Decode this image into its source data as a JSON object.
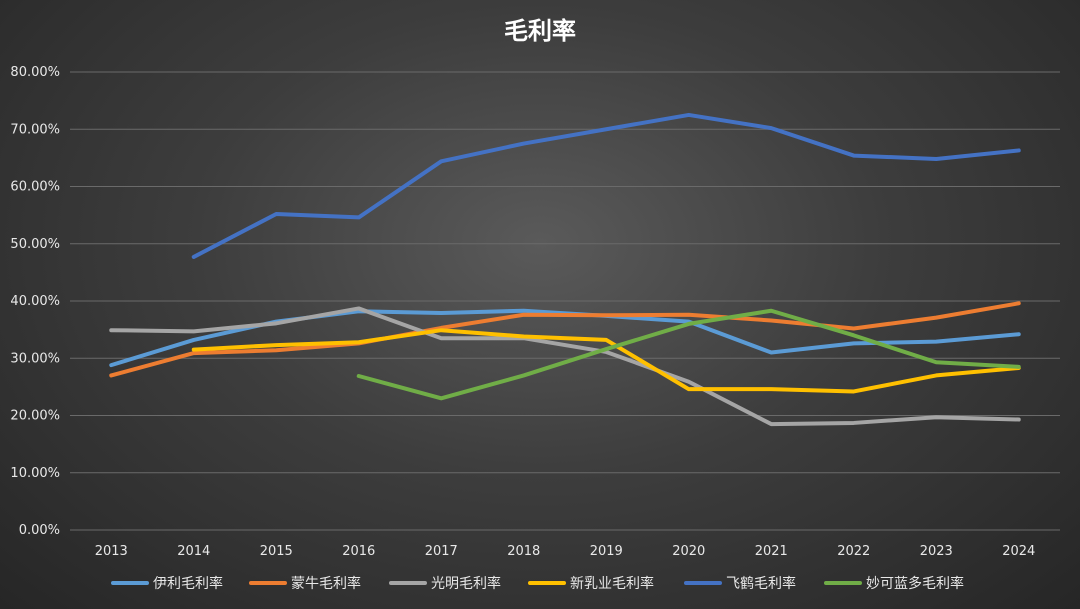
{
  "chart_data": {
    "type": "line",
    "title": "毛利率",
    "xlabel": "",
    "ylabel": "",
    "x": [
      "2013",
      "2014",
      "2015",
      "2016",
      "2017",
      "2018",
      "2019",
      "2020",
      "2021",
      "2022",
      "2023",
      "2024"
    ],
    "ylim": [
      0,
      80
    ],
    "y_ticks": [
      "0.00%",
      "10.00%",
      "20.00%",
      "30.00%",
      "40.00%",
      "50.00%",
      "60.00%",
      "70.00%",
      "80.00%"
    ],
    "grid": "horizontal",
    "legend_position": "bottom",
    "series": [
      {
        "name": "伊利毛利率",
        "color": "#5b9bd5",
        "values": [
          28.8,
          33.2,
          36.4,
          38.2,
          37.9,
          38.3,
          37.4,
          36.4,
          31.0,
          32.6,
          32.9,
          34.2
        ]
      },
      {
        "name": "蒙牛毛利率",
        "color": "#ed7d31",
        "values": [
          27.0,
          30.9,
          31.4,
          32.6,
          35.3,
          37.6,
          37.5,
          37.6,
          36.6,
          35.2,
          37.1,
          39.6
        ]
      },
      {
        "name": "光明毛利率",
        "color": "#a5a5a5",
        "values": [
          34.9,
          34.7,
          36.1,
          38.7,
          33.5,
          33.5,
          31.1,
          25.9,
          18.5,
          18.7,
          19.7,
          19.3
        ]
      },
      {
        "name": "新乳业毛利率",
        "color": "#ffc000",
        "values": [
          null,
          31.5,
          32.3,
          32.8,
          34.9,
          33.8,
          33.2,
          24.6,
          24.6,
          24.2,
          27.0,
          28.3
        ]
      },
      {
        "name": "飞鹤毛利率",
        "color": "#4472c4",
        "values": [
          null,
          47.7,
          55.2,
          54.6,
          64.4,
          67.5,
          70.0,
          72.5,
          70.2,
          65.4,
          64.8,
          66.3
        ]
      },
      {
        "name": "妙可蓝多毛利率",
        "color": "#70ad47",
        "values": [
          null,
          null,
          null,
          26.9,
          23.0,
          27.0,
          31.6,
          36.0,
          38.3,
          34.0,
          29.3,
          28.5
        ]
      }
    ]
  }
}
